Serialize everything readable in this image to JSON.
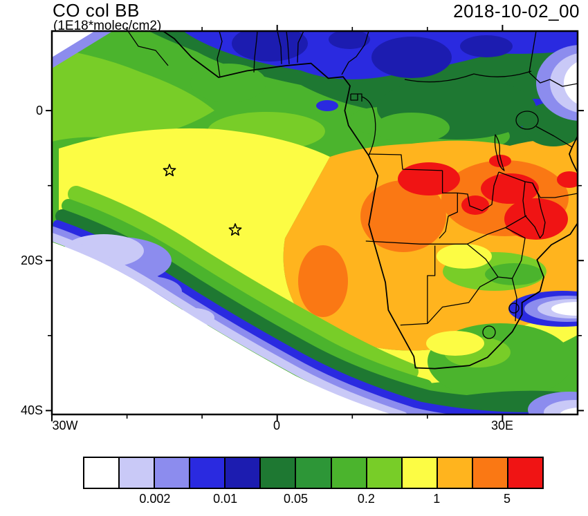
{
  "header": {
    "title": "CO col BB",
    "subtitle": "(1E18*molec/cm2)",
    "timestamp": "2018-10-02_00"
  },
  "chart_data": {
    "type": "heatmap",
    "subtype": "filled-contour-geographic-map",
    "title": "CO col BB",
    "units_label": "(1E18*molec/cm2)",
    "timestamp": "2018-10-02_00",
    "x_axis": {
      "ticks": [
        "30W",
        "0",
        "30E"
      ]
    },
    "y_axis": {
      "ticks": [
        "0",
        "20S",
        "40S"
      ]
    },
    "colorbar": {
      "labels": [
        "0.002",
        "0.01",
        "0.05",
        "0.2",
        "1",
        "5"
      ],
      "levels": [
        0.001,
        0.002,
        0.005,
        0.01,
        0.02,
        0.05,
        0.1,
        0.2,
        0.5,
        1,
        2,
        5
      ],
      "colors": [
        "#ffffff",
        "#c9c9f7",
        "#8c8cee",
        "#2a2ae0",
        "#1c1cb0",
        "#1e7832",
        "#2d9637",
        "#4bb42d",
        "#78cd28",
        "#fcfc44",
        "#ffb41e",
        "#fa7814",
        "#f01414"
      ]
    },
    "markers": [
      {
        "symbol": "open-star",
        "approx_lon": -14.4,
        "approx_lat": -8.0
      },
      {
        "symbol": "open-star",
        "approx_lon": -5.6,
        "approx_lat": -16.0
      }
    ]
  }
}
